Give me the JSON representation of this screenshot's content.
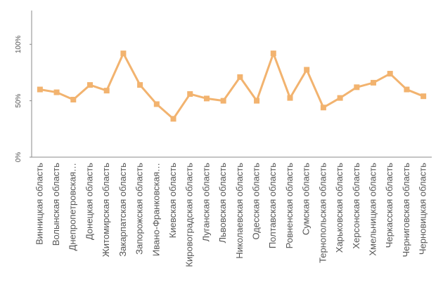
{
  "chart_data": {
    "type": "line",
    "categories": [
      "Винницкая область",
      "Волынская область",
      "Днепропетровская…",
      "Донецкая область",
      "Житомирская область",
      "Закарпатская область",
      "Запорожская область",
      "Ивано-Франковская…",
      "Киевская область",
      "Кировоградская область",
      "Луганская область",
      "Львовская область",
      "Николаевская область",
      "Одесская область",
      "Полтавская область",
      "Ровненская область",
      "Сумская область",
      "Тернопольская область",
      "Харьковская область",
      "Херсонская область",
      "Хмельницкая область",
      "Черкасская область",
      "Черниговская область",
      "Черновицкая область"
    ],
    "values": [
      60,
      57.5,
      51,
      64,
      59,
      92,
      64,
      47,
      34,
      56,
      52,
      50,
      71,
      50,
      92,
      52.5,
      77.5,
      44,
      52.5,
      62,
      66,
      74,
      60,
      54
    ],
    "color": "#f2b36f",
    "ylim": [
      0,
      130
    ],
    "yticks": [
      {
        "value": 0,
        "label": "0%"
      },
      {
        "value": 50,
        "label": "50%"
      },
      {
        "value": 100,
        "label": "100%"
      }
    ]
  }
}
